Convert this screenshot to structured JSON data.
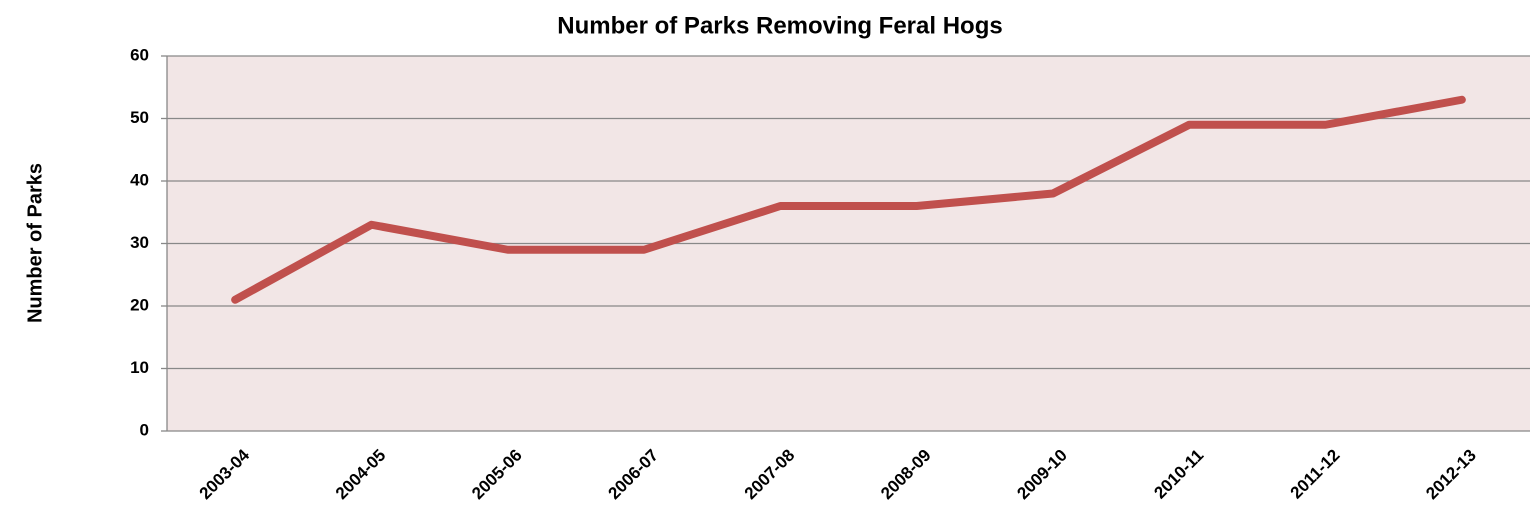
{
  "chart_data": {
    "type": "line",
    "title": "Number of Parks Removing Feral Hogs",
    "y_label": "Number of Parks",
    "categories": [
      "2003-04",
      "2004-05",
      "2005-06",
      "2006-07",
      "2007-08",
      "2008-09",
      "2009-10",
      "2010-11",
      "2011-12",
      "2012-13"
    ],
    "values": [
      21,
      33,
      29,
      29,
      36,
      36,
      38,
      49,
      49,
      53
    ],
    "color": "#c0504d",
    "ylim": [
      0,
      60
    ],
    "yticks": [
      0,
      10,
      20,
      30,
      40,
      50,
      60
    ],
    "grid": true
  }
}
